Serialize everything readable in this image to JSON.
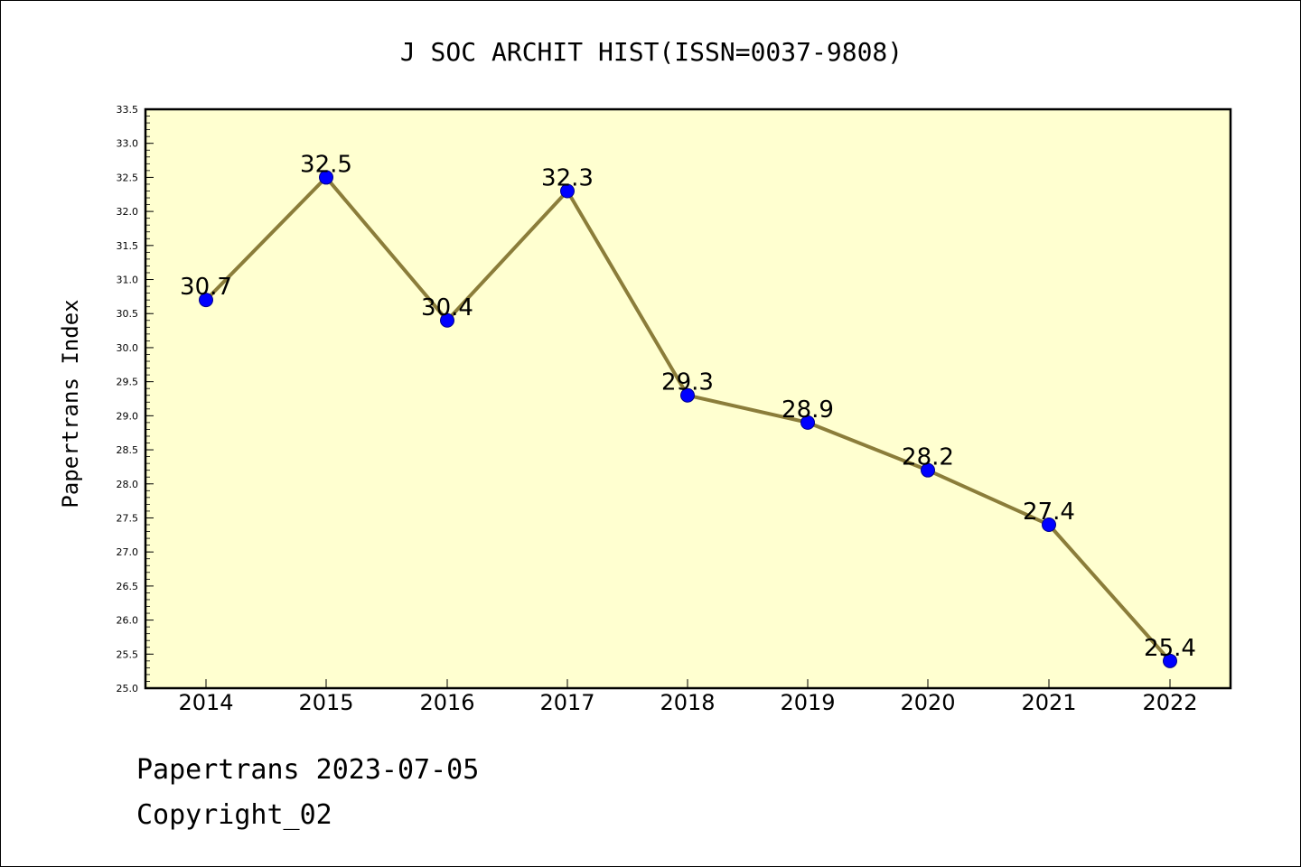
{
  "chart_data": {
    "type": "line",
    "title": "J SOC ARCHIT HIST(ISSN=0037-9808)",
    "xlabel": "",
    "ylabel": "Papertrans Index",
    "categories": [
      "2014",
      "2015",
      "2016",
      "2017",
      "2018",
      "2019",
      "2020",
      "2021",
      "2022"
    ],
    "series": [
      {
        "values": [
          30.7,
          32.5,
          30.4,
          32.3,
          29.3,
          28.9,
          28.2,
          27.4,
          25.4
        ]
      }
    ],
    "data_labels": [
      "30.7",
      "32.5",
      "30.4",
      "32.3",
      "29.3",
      "28.9",
      "28.2",
      "27.4",
      "25.4"
    ],
    "ylim": [
      25.0,
      33.5
    ],
    "yticks": [
      "25.0",
      "25.5",
      "26.0",
      "26.5",
      "27.0",
      "27.5",
      "28.0",
      "28.5",
      "29.0",
      "29.5",
      "30.0",
      "30.5",
      "31.0",
      "31.5",
      "32.0",
      "32.5",
      "33.0",
      "33.5"
    ],
    "grid": false,
    "legend": "none",
    "colors": {
      "line": "#8b7d3a",
      "marker": "#0000ff",
      "plot_background": "#ffffd0"
    }
  },
  "footer": {
    "line1": "Papertrans 2023-07-05",
    "line2": "Copyright_02"
  }
}
